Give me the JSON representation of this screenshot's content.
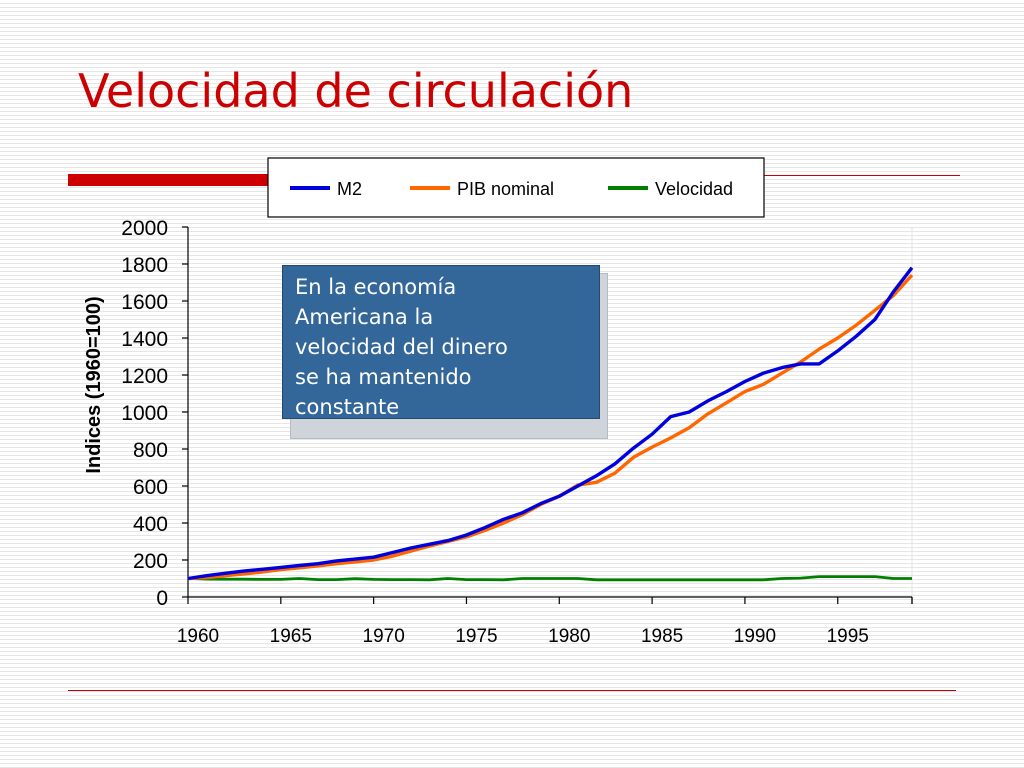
{
  "slide": {
    "title": "Velocidad de circulación",
    "title_color": "#cc0000",
    "accent_color": "#cc0000",
    "callout": {
      "lines": [
        "En la economía",
        "Americana la",
        "velocidad del dinero",
        "se ha mantenido",
        "constante"
      ],
      "background": "#336699"
    }
  },
  "chart_data": {
    "type": "line",
    "title": "",
    "xlabel": "",
    "ylabel": "Indices (1960=100)",
    "xlim": [
      1960,
      1999
    ],
    "ylim": [
      0,
      2000
    ],
    "x_ticks": [
      1960,
      1965,
      1970,
      1975,
      1980,
      1985,
      1990,
      1995
    ],
    "y_ticks": [
      0,
      200,
      400,
      600,
      800,
      1000,
      1200,
      1400,
      1600,
      1800,
      2000
    ],
    "grid": false,
    "legend_position": "top",
    "x": [
      1960,
      1961,
      1962,
      1963,
      1964,
      1965,
      1966,
      1967,
      1968,
      1969,
      1970,
      1971,
      1972,
      1973,
      1974,
      1975,
      1976,
      1977,
      1978,
      1979,
      1980,
      1981,
      1982,
      1983,
      1984,
      1985,
      1986,
      1987,
      1988,
      1989,
      1990,
      1991,
      1992,
      1993,
      1994,
      1995,
      1996,
      1997,
      1998,
      1999
    ],
    "series": [
      {
        "name": "M2",
        "color": "#0000dd",
        "values": [
          100,
          115,
          128,
          140,
          150,
          160,
          170,
          180,
          195,
          205,
          215,
          240,
          265,
          285,
          305,
          335,
          375,
          420,
          455,
          505,
          545,
          600,
          655,
          720,
          805,
          880,
          975,
          1000,
          1060,
          1110,
          1165,
          1210,
          1240,
          1260,
          1260,
          1330,
          1410,
          1500,
          1650,
          1780
        ]
      },
      {
        "name": "PIB nominal",
        "color": "#ff6600",
        "values": [
          100,
          105,
          115,
          125,
          135,
          148,
          158,
          168,
          180,
          190,
          200,
          220,
          248,
          275,
          300,
          325,
          360,
          400,
          445,
          500,
          545,
          605,
          620,
          670,
          755,
          810,
          860,
          915,
          990,
          1050,
          1110,
          1150,
          1210,
          1270,
          1340,
          1400,
          1470,
          1550,
          1630,
          1740
        ]
      },
      {
        "name": "Velocidad",
        "color": "#008000",
        "values": [
          100,
          97,
          96,
          96,
          95,
          95,
          100,
          94,
          94,
          99,
          95,
          94,
          94,
          93,
          100,
          94,
          94,
          93,
          100,
          100,
          100,
          100,
          93,
          93,
          93,
          93,
          93,
          93,
          93,
          93,
          93,
          93,
          100,
          102,
          110,
          110,
          110,
          110,
          100,
          100
        ]
      }
    ]
  }
}
